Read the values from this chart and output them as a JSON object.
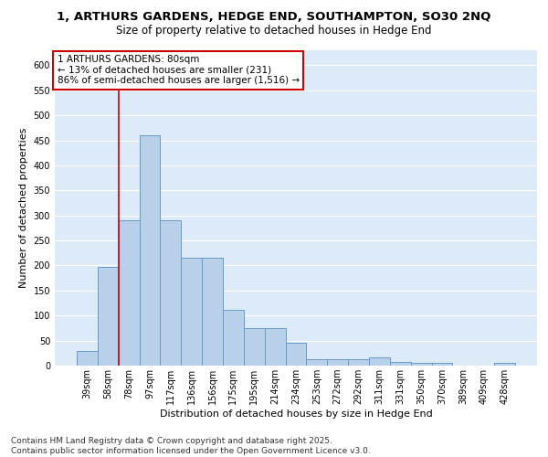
{
  "title_line1": "1, ARTHURS GARDENS, HEDGE END, SOUTHAMPTON, SO30 2NQ",
  "title_line2": "Size of property relative to detached houses in Hedge End",
  "xlabel": "Distribution of detached houses by size in Hedge End",
  "ylabel": "Number of detached properties",
  "categories": [
    "39sqm",
    "58sqm",
    "78sqm",
    "97sqm",
    "117sqm",
    "136sqm",
    "156sqm",
    "175sqm",
    "195sqm",
    "214sqm",
    "234sqm",
    "253sqm",
    "272sqm",
    "292sqm",
    "311sqm",
    "331sqm",
    "350sqm",
    "370sqm",
    "389sqm",
    "409sqm",
    "428sqm"
  ],
  "values": [
    30,
    197,
    290,
    460,
    291,
    216,
    216,
    112,
    75,
    75,
    46,
    12,
    12,
    12,
    17,
    8,
    5,
    5,
    0,
    0,
    5
  ],
  "bar_color": "#b8d0e8",
  "bar_edge_color": "#6699cc",
  "background_color": "#ddeaf7",
  "annotation_text": "1 ARTHURS GARDENS: 80sqm\n← 13% of detached houses are smaller (231)\n86% of semi-detached houses are larger (1,516) →",
  "annotation_box_color": "#ffffff",
  "annotation_box_edge_color": "#cc0000",
  "vline_color": "#cc0000",
  "ylim": [
    0,
    630
  ],
  "yticks": [
    0,
    50,
    100,
    150,
    200,
    250,
    300,
    350,
    400,
    450,
    500,
    550,
    600
  ],
  "footnote": "Contains HM Land Registry data © Crown copyright and database right 2025.\nContains public sector information licensed under the Open Government Licence v3.0.",
  "title_fontsize": 9.5,
  "subtitle_fontsize": 8.5,
  "axis_label_fontsize": 8,
  "tick_fontsize": 7,
  "annotation_fontsize": 7.5,
  "footnote_fontsize": 6.5,
  "vline_x_index": 1.5
}
